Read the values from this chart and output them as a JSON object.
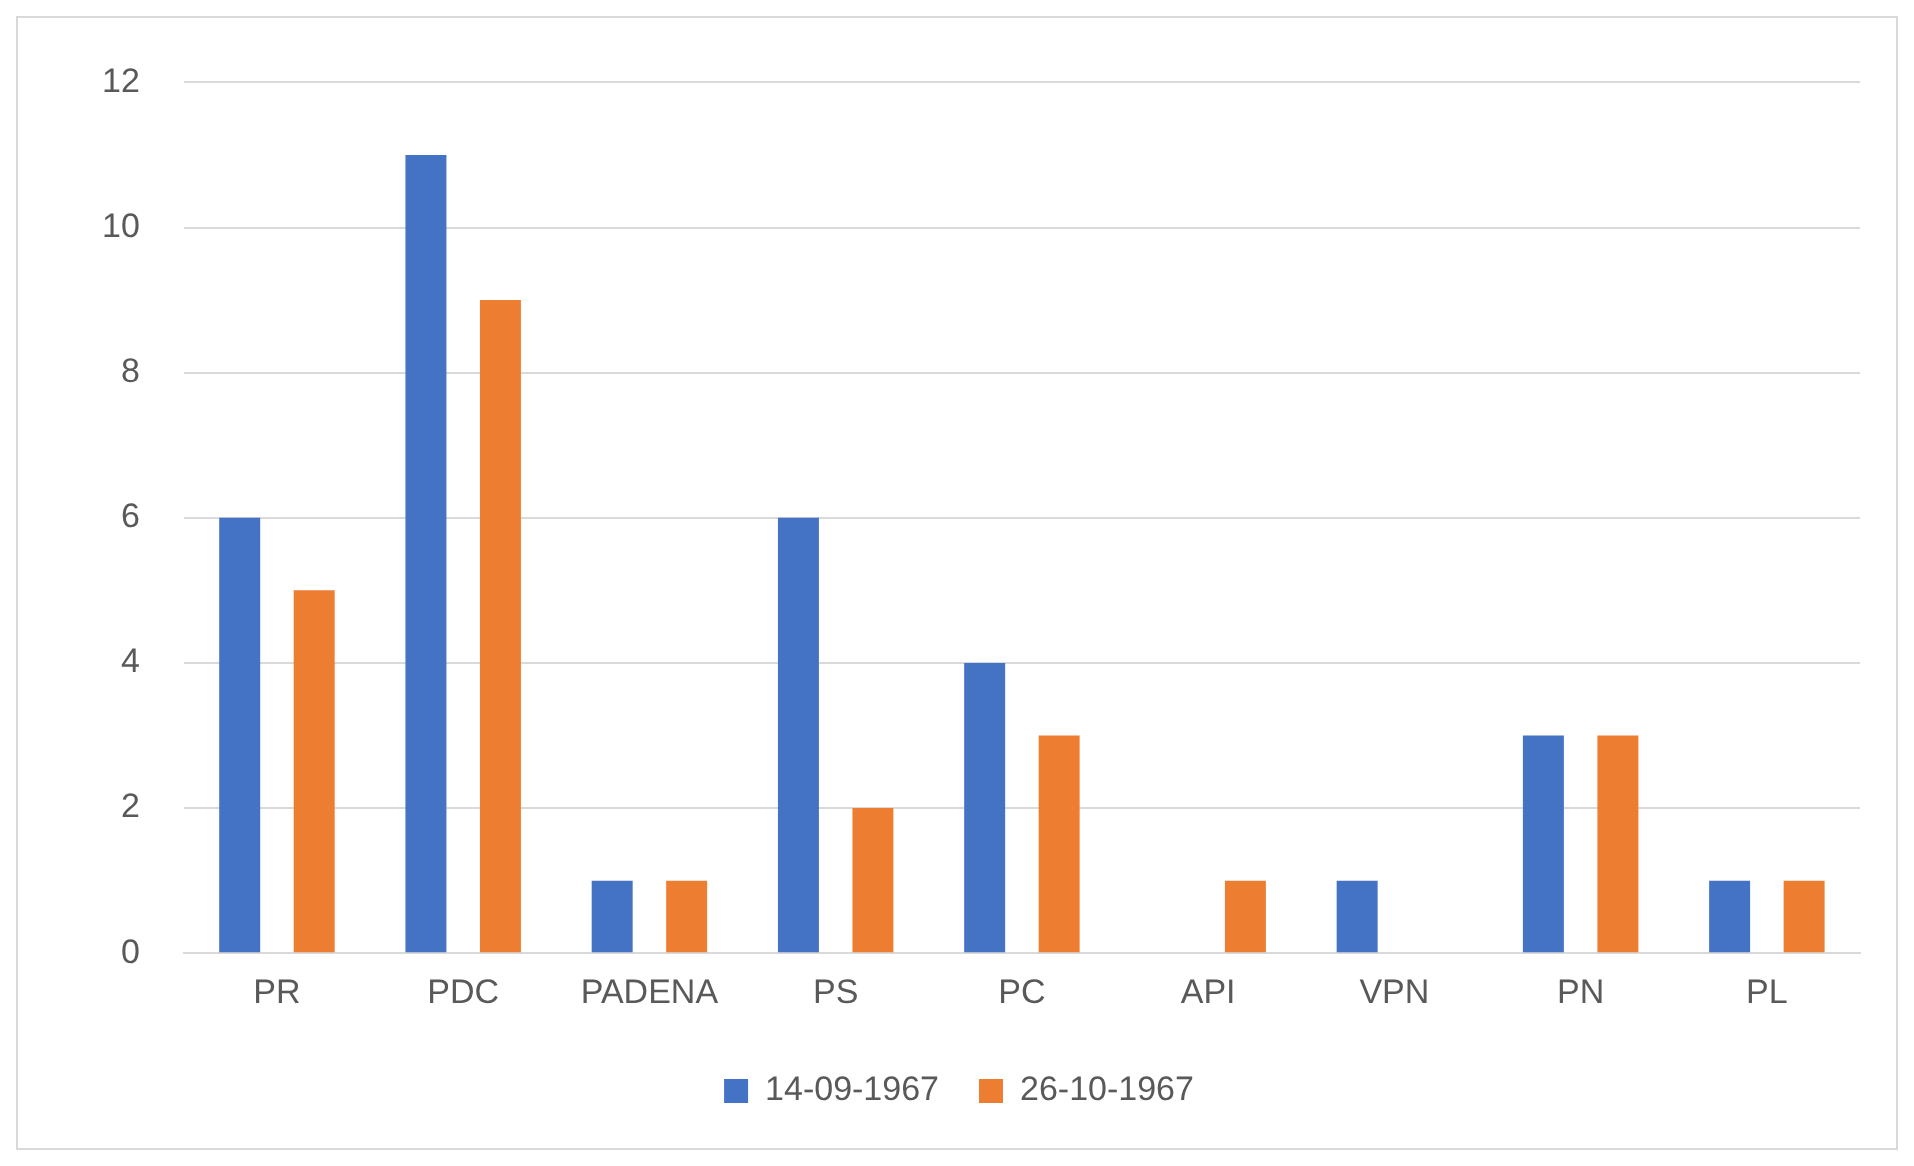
{
  "chart_data": {
    "type": "bar",
    "categories": [
      "PR",
      "PDC",
      "PADENA",
      "PS",
      "PC",
      "API",
      "VPN",
      "PN",
      "PL"
    ],
    "series": [
      {
        "name": "14-09-1967",
        "color": "#4472c4",
        "values": [
          6,
          11,
          1,
          6,
          4,
          0,
          1,
          3,
          1
        ]
      },
      {
        "name": "26-10-1967",
        "color": "#ed7d31",
        "values": [
          5,
          9,
          1,
          2,
          3,
          1,
          0,
          3,
          1
        ]
      }
    ],
    "ylim": [
      0,
      12
    ],
    "yticks": [
      0,
      2,
      4,
      6,
      8,
      10,
      12
    ],
    "grid": "y",
    "legend": "bottom"
  }
}
